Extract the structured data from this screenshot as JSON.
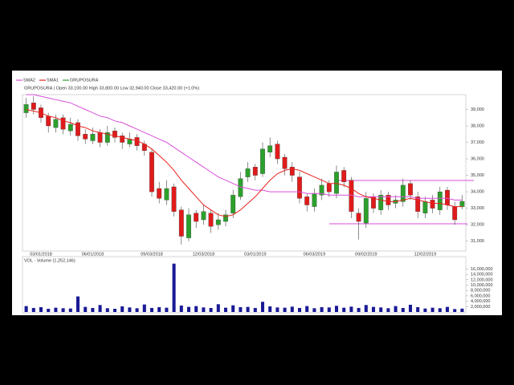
{
  "chart_data": [
    {
      "type": "candlestick",
      "name": "GRUPOSURA",
      "title": "GRUPOSURA | Open 33,100.00  High 33,800.00  Low 32,940.00  Close 33,420.00 (+1.0%)",
      "categories": [
        null,
        null,
        "03/01/2018",
        null,
        null,
        null,
        null,
        null,
        null,
        "06/01/2018",
        null,
        null,
        null,
        null,
        null,
        null,
        null,
        "09/03/2018",
        null,
        null,
        null,
        null,
        null,
        null,
        "12/03/2018",
        null,
        null,
        null,
        null,
        null,
        null,
        "03/01/2019",
        null,
        null,
        null,
        null,
        null,
        null,
        null,
        "06/03/2019",
        null,
        null,
        null,
        null,
        null,
        null,
        "09/02/2019",
        null,
        null,
        null,
        null,
        null,
        null,
        null,
        "12/02/2019",
        null,
        null,
        null,
        null,
        null
      ],
      "open": [
        38800,
        39400,
        39100,
        38600,
        37900,
        38500,
        37700,
        38200,
        37500,
        37100,
        37600,
        37000,
        37700,
        37400,
        36900,
        37300,
        36900,
        36400,
        34200,
        33500,
        34300,
        32900,
        31200,
        32700,
        32300,
        32700,
        32000,
        32200,
        32700,
        33700,
        34900,
        35500,
        35100,
        36400,
        36900,
        36100,
        35500,
        34900,
        33700,
        33100,
        33800,
        34500,
        33900,
        35300,
        34700,
        32700,
        32100,
        33700,
        32900,
        33800,
        33300,
        33400,
        34500,
        33700,
        32700,
        33500,
        32900,
        34100,
        33100,
        33100
      ],
      "high": [
        39700,
        39800,
        39300,
        38800,
        38700,
        38700,
        38500,
        38400,
        37800,
        37900,
        37800,
        38000,
        37900,
        37600,
        37600,
        37500,
        37100,
        36600,
        34600,
        34700,
        34500,
        33100,
        33000,
        32900,
        33200,
        32900,
        32700,
        32900,
        34100,
        35200,
        35800,
        35700,
        37000,
        37300,
        37100,
        36300,
        35800,
        35200,
        33900,
        34200,
        34800,
        34700,
        35600,
        35500,
        34900,
        33000,
        34000,
        33900,
        34100,
        34000,
        33800,
        34800,
        34700,
        34000,
        33700,
        33800,
        34300,
        34300,
        33400,
        33800
      ],
      "low": [
        38500,
        38700,
        38200,
        37600,
        37600,
        37500,
        37400,
        37100,
        36900,
        36900,
        36700,
        36800,
        37000,
        36600,
        36700,
        36500,
        36200,
        33700,
        33300,
        33200,
        32500,
        30800,
        31000,
        31800,
        32000,
        31500,
        31700,
        31900,
        32400,
        33500,
        34600,
        34700,
        34900,
        36100,
        35700,
        35000,
        34600,
        33300,
        32800,
        32800,
        33500,
        33700,
        33600,
        34300,
        32400,
        31100,
        31800,
        32700,
        32600,
        32900,
        33000,
        33100,
        33500,
        32400,
        32400,
        32700,
        32600,
        32900,
        32000,
        32940
      ],
      "close": [
        39300,
        39000,
        38500,
        38000,
        38400,
        37800,
        38100,
        37400,
        37200,
        37500,
        37000,
        37600,
        37300,
        37000,
        37200,
        36800,
        36500,
        34000,
        33600,
        34200,
        32800,
        31300,
        32600,
        32200,
        32800,
        31900,
        32300,
        32600,
        33800,
        34800,
        35400,
        35000,
        36600,
        36800,
        36000,
        35400,
        35000,
        33600,
        33200,
        33900,
        34400,
        34000,
        35200,
        34600,
        32800,
        32200,
        33600,
        33000,
        33800,
        33200,
        33500,
        34400,
        33800,
        32800,
        33400,
        33000,
        34000,
        33200,
        32300,
        33420
      ],
      "up_color": "#2ca02c",
      "down_color": "#e01b1b",
      "series": [
        {
          "name": "SMA2",
          "color": "#d94fd9",
          "values": [
            39900,
            39900,
            39800,
            39700,
            39600,
            39500,
            39400,
            39200,
            39000,
            38800,
            38600,
            38500,
            38300,
            38200,
            38000,
            37800,
            37600,
            37400,
            37200,
            37000,
            36700,
            36400,
            36100,
            35800,
            35500,
            35200,
            34900,
            34700,
            34500,
            34300,
            34200,
            34100,
            34100,
            34000,
            34000,
            34000,
            34000,
            34000,
            33900,
            33900,
            33900,
            33800,
            33800,
            33800,
            33800,
            33700,
            33700,
            33700,
            33700,
            33700,
            33700,
            33700,
            33700,
            33600,
            33600,
            33600,
            33600,
            33600,
            33500,
            33500
          ]
        },
        {
          "name": "SMA1",
          "color": "#e8221e",
          "values": [
            39000,
            38900,
            38800,
            38600,
            38500,
            38300,
            38200,
            38000,
            37900,
            37700,
            37600,
            37500,
            37400,
            37300,
            37200,
            37100,
            36900,
            36600,
            36200,
            35800,
            35300,
            34700,
            34200,
            33700,
            33200,
            32900,
            32600,
            32500,
            32600,
            32900,
            33300,
            33700,
            34200,
            34700,
            35100,
            35300,
            35400,
            35300,
            35100,
            34900,
            34700,
            34500,
            34500,
            34400,
            34200,
            33900,
            33700,
            33600,
            33500,
            33400,
            33400,
            33500,
            33600,
            33500,
            33400,
            33300,
            33300,
            33200,
            33100,
            33100
          ]
        }
      ],
      "ylim": [
        30400,
        39900
      ],
      "yticks": [
        {
          "value": 31000,
          "label": "31,000"
        },
        {
          "value": 32000,
          "label": "32,000"
        },
        {
          "value": 33000,
          "label": "33,000"
        },
        {
          "value": 34000,
          "label": "34,000"
        },
        {
          "value": 35000,
          "label": "35,000"
        },
        {
          "value": 36000,
          "label": "36,000"
        },
        {
          "value": 37000,
          "label": "37,000"
        },
        {
          "value": 38000,
          "label": "38,000"
        },
        {
          "value": 39000,
          "label": "39,000"
        }
      ]
    },
    {
      "type": "bar",
      "title": "VOL · Volume (1,252,146)",
      "color": "#1a1a96",
      "values": [
        2200000,
        1500000,
        1800000,
        1200000,
        1600000,
        1400000,
        1300000,
        5800000,
        1900000,
        1500000,
        2600000,
        1400000,
        1200000,
        2100000,
        1700000,
        1400000,
        2800000,
        1500000,
        1800000,
        1600000,
        18000000,
        2400000,
        1900000,
        2200000,
        1700000,
        1500000,
        2900000,
        1600000,
        2500000,
        1800000,
        1900000,
        1500000,
        3800000,
        2100000,
        1700000,
        1600000,
        2000000,
        1500000,
        2200000,
        1400000,
        1800000,
        1700000,
        2300000,
        1600000,
        2000000,
        1500000,
        2600000,
        1900000,
        1700000,
        1400000,
        2200000,
        1500000,
        2700000,
        1800000,
        1300000,
        1600000,
        1400000,
        1900000,
        1100000,
        1252146
      ],
      "ylim": [
        0,
        20000000
      ],
      "yticks": [
        {
          "value": 2000000,
          "label": "2,000,000"
        },
        {
          "value": 4000000,
          "label": "4,000,000"
        },
        {
          "value": 6000000,
          "label": "6,000,000"
        },
        {
          "value": 8000000,
          "label": "8,000,000"
        },
        {
          "value": 10000000,
          "label": "10,000,000"
        },
        {
          "value": 12000000,
          "label": "12,000,000"
        },
        {
          "value": 14000000,
          "label": "14,000,000"
        },
        {
          "value": 16000000,
          "label": "16,000,000"
        }
      ]
    }
  ]
}
